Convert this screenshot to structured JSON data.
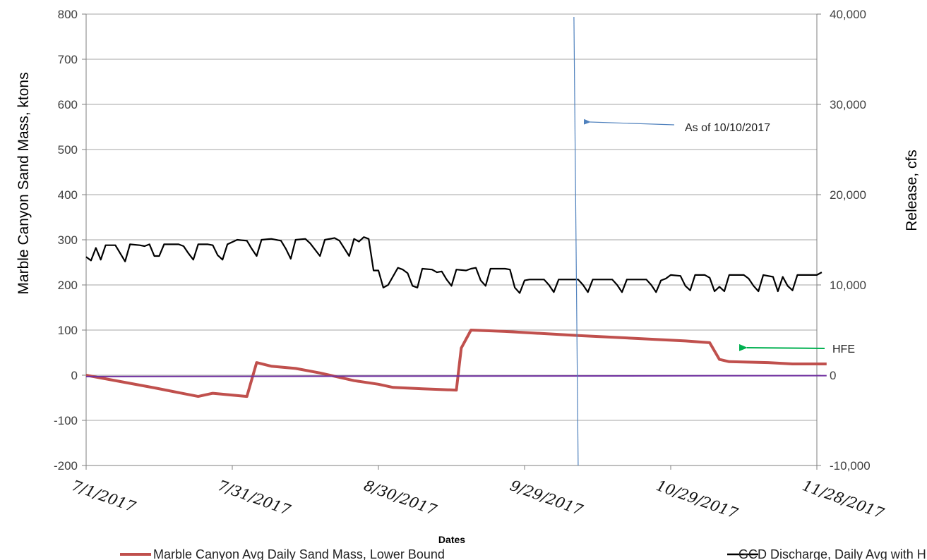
{
  "chart_data": {
    "type": "line",
    "xlabel": "Dates",
    "ylabel_left": "Marble Canyon Sand Mass, ktons",
    "ylabel_right": "Release, cfs",
    "x_ticks": [
      "7/1/2017",
      "7/31/2017",
      "8/30/2017",
      "9/29/2017",
      "10/29/2017",
      "11/28/2017"
    ],
    "x_range": [
      "7/1/2017",
      "11/28/2017"
    ],
    "y_left_range": [
      -200,
      800
    ],
    "y_left_ticks": [
      -200,
      -100,
      0,
      100,
      200,
      300,
      400,
      500,
      600,
      700,
      800
    ],
    "y_right_range": [
      -10000,
      40000
    ],
    "y_right_ticks": [
      "-10,000",
      "0",
      "10,000",
      "20,000",
      "30,000",
      "40,000"
    ],
    "grid": "horizontal",
    "legend_placement": "bottom",
    "series": [
      {
        "name": "Marble Canyon Avg Daily Sand Mass, Lower Bound",
        "color": "#c0504d",
        "axis": "left",
        "points": [
          [
            "7/1/2017",
            0
          ],
          [
            "7/15/2017",
            -28
          ],
          [
            "7/24/2017",
            -47
          ],
          [
            "7/27/2017",
            -40
          ],
          [
            "8/3/2017",
            -47
          ],
          [
            "8/5/2017",
            28
          ],
          [
            "8/8/2017",
            20
          ],
          [
            "8/13/2017",
            15
          ],
          [
            "8/18/2017",
            5
          ],
          [
            "8/25/2017",
            -12
          ],
          [
            "8/30/2017",
            -20
          ],
          [
            "9/2/2017",
            -27
          ],
          [
            "9/8/2017",
            -30
          ],
          [
            "9/15/2017",
            -33
          ],
          [
            "9/16/2017",
            60
          ],
          [
            "9/18/2017",
            100
          ],
          [
            "9/25/2017",
            97
          ],
          [
            "10/10/2017",
            88
          ],
          [
            "11/1/2017",
            76
          ],
          [
            "11/6/2017",
            72
          ],
          [
            "11/8/2017",
            35
          ],
          [
            "11/10/2017",
            30
          ],
          [
            "11/18/2017",
            28
          ],
          [
            "11/23/2017",
            25
          ],
          [
            "11/30/2017",
            25
          ]
        ]
      },
      {
        "name": "GCD Discharge, Daily Avg with HFE",
        "color": "#000000",
        "axis": "right",
        "points": [
          [
            "7/1/2017",
            13100
          ],
          [
            "7/2/2017",
            12700
          ],
          [
            "7/3/2017",
            14100
          ],
          [
            "7/4/2017",
            12800
          ],
          [
            "7/5/2017",
            14400
          ],
          [
            "7/7/2017",
            14400
          ],
          [
            "7/8/2017",
            13500
          ],
          [
            "7/9/2017",
            12600
          ],
          [
            "7/10/2017",
            14500
          ],
          [
            "7/12/2017",
            14400
          ],
          [
            "7/13/2017",
            14300
          ],
          [
            "7/14/2017",
            14500
          ],
          [
            "7/15/2017",
            13200
          ],
          [
            "7/16/2017",
            13200
          ],
          [
            "7/17/2017",
            14500
          ],
          [
            "7/20/2017",
            14500
          ],
          [
            "7/21/2017",
            14300
          ],
          [
            "7/22/2017",
            13500
          ],
          [
            "7/23/2017",
            12800
          ],
          [
            "7/24/2017",
            14500
          ],
          [
            "7/26/2017",
            14500
          ],
          [
            "7/27/2017",
            14400
          ],
          [
            "7/28/2017",
            13300
          ],
          [
            "7/29/2017",
            12800
          ],
          [
            "7/30/2017",
            14500
          ],
          [
            "8/1/2017",
            15000
          ],
          [
            "8/3/2017",
            14900
          ],
          [
            "8/4/2017",
            14000
          ],
          [
            "8/5/2017",
            13200
          ],
          [
            "8/6/2017",
            15000
          ],
          [
            "8/8/2017",
            15100
          ],
          [
            "8/10/2017",
            14900
          ],
          [
            "8/11/2017",
            14000
          ],
          [
            "8/12/2017",
            12900
          ],
          [
            "8/13/2017",
            15000
          ],
          [
            "8/15/2017",
            15100
          ],
          [
            "8/16/2017",
            14600
          ],
          [
            "8/18/2017",
            13200
          ],
          [
            "8/19/2017",
            15000
          ],
          [
            "8/21/2017",
            15200
          ],
          [
            "8/22/2017",
            14900
          ],
          [
            "8/24/2017",
            13200
          ],
          [
            "8/25/2017",
            15100
          ],
          [
            "8/26/2017",
            14800
          ],
          [
            "8/27/2017",
            15300
          ],
          [
            "8/28/2017",
            15100
          ],
          [
            "8/29/2017",
            11600
          ],
          [
            "8/30/2017",
            11600
          ],
          [
            "8/31/2017",
            9700
          ],
          [
            "9/1/2017",
            10000
          ],
          [
            "9/3/2017",
            11900
          ],
          [
            "9/4/2017",
            11700
          ],
          [
            "9/5/2017",
            11300
          ],
          [
            "9/6/2017",
            9900
          ],
          [
            "9/7/2017",
            9700
          ],
          [
            "9/8/2017",
            11800
          ],
          [
            "9/10/2017",
            11700
          ],
          [
            "9/11/2017",
            11400
          ],
          [
            "9/12/2017",
            11500
          ],
          [
            "9/13/2017",
            10600
          ],
          [
            "9/14/2017",
            9900
          ],
          [
            "9/15/2017",
            11700
          ],
          [
            "9/17/2017",
            11600
          ],
          [
            "9/18/2017",
            11800
          ],
          [
            "9/19/2017",
            11900
          ],
          [
            "9/20/2017",
            10500
          ],
          [
            "9/21/2017",
            9900
          ],
          [
            "9/22/2017",
            11800
          ],
          [
            "9/25/2017",
            11800
          ],
          [
            "9/26/2017",
            11700
          ],
          [
            "9/27/2017",
            9700
          ],
          [
            "9/28/2017",
            9100
          ],
          [
            "9/29/2017",
            10500
          ],
          [
            "9/30/2017",
            10600
          ],
          [
            "10/3/2017",
            10600
          ],
          [
            "10/4/2017",
            10000
          ],
          [
            "10/5/2017",
            9200
          ],
          [
            "10/6/2017",
            10600
          ],
          [
            "10/10/2017",
            10600
          ],
          [
            "10/11/2017",
            10000
          ],
          [
            "10/12/2017",
            9200
          ],
          [
            "10/13/2017",
            10600
          ],
          [
            "10/17/2017",
            10600
          ],
          [
            "10/18/2017",
            10000
          ],
          [
            "10/19/2017",
            9200
          ],
          [
            "10/20/2017",
            10600
          ],
          [
            "10/24/2017",
            10600
          ],
          [
            "10/25/2017",
            10000
          ],
          [
            "10/26/2017",
            9200
          ],
          [
            "10/27/2017",
            10500
          ],
          [
            "10/28/2017",
            10700
          ],
          [
            "10/29/2017",
            11100
          ],
          [
            "10/31/2017",
            11000
          ],
          [
            "11/1/2017",
            9900
          ],
          [
            "11/2/2017",
            9400
          ],
          [
            "11/3/2017",
            11100
          ],
          [
            "11/5/2017",
            11100
          ],
          [
            "11/6/2017",
            10800
          ],
          [
            "11/7/2017",
            9300
          ],
          [
            "11/8/2017",
            9800
          ],
          [
            "11/9/2017",
            9300
          ],
          [
            "11/10/2017",
            11100
          ],
          [
            "11/13/2017",
            11100
          ],
          [
            "11/14/2017",
            10700
          ],
          [
            "11/15/2017",
            9900
          ],
          [
            "11/16/2017",
            9300
          ],
          [
            "11/17/2017",
            11100
          ],
          [
            "11/19/2017",
            10900
          ],
          [
            "11/20/2017",
            9300
          ],
          [
            "11/21/2017",
            10900
          ],
          [
            "11/22/2017",
            9900
          ],
          [
            "11/23/2017",
            9400
          ],
          [
            "11/24/2017",
            11100
          ],
          [
            "11/26/2017",
            11100
          ],
          [
            "11/28/2017",
            11100
          ],
          [
            "11/29/2017",
            11400
          ]
        ]
      },
      {
        "name": "",
        "color": "#7030a0",
        "axis": "left",
        "points": [
          [
            "7/1/2017",
            -3
          ],
          [
            "11/30/2017",
            -1
          ]
        ]
      }
    ],
    "annotations": [
      {
        "text": "As of 10/10/2017",
        "date": "10/10/2017",
        "color": "#4f81bd"
      },
      {
        "text": "HFE",
        "color": "#00b050",
        "target_date": "11/7/2017",
        "target_value": 62
      }
    ]
  }
}
